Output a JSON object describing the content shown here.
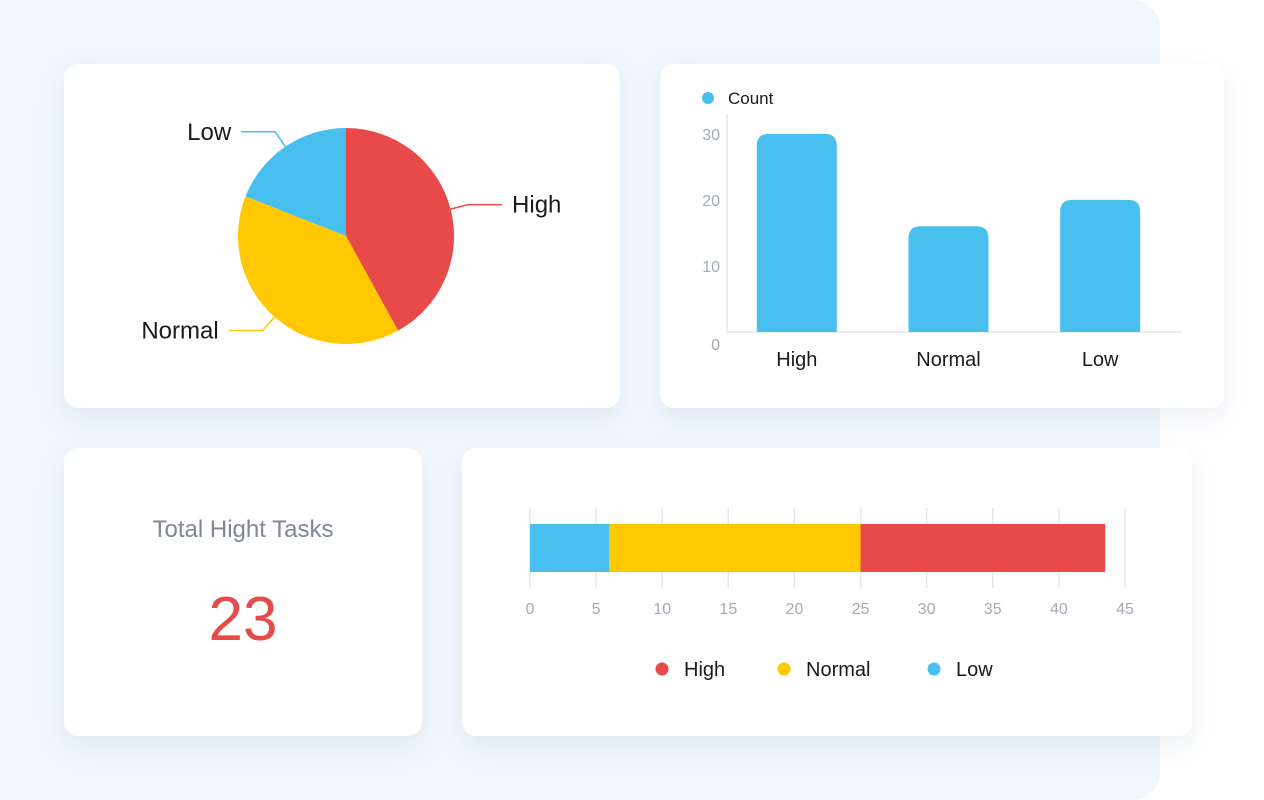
{
  "colors": {
    "high": "#e84a4a",
    "normal": "#ffc800",
    "low": "#49bfef",
    "axis_text": "#a3aab8",
    "axis_line": "#e3e6ec",
    "label_text": "#1a1a1a"
  },
  "chart_data": [
    {
      "type": "pie",
      "slices": [
        {
          "label": "High",
          "value": 42,
          "color": "#e84a4a"
        },
        {
          "label": "Normal",
          "value": 39,
          "color": "#ffc800"
        },
        {
          "label": "Low",
          "value": 19,
          "color": "#49bfef"
        }
      ]
    },
    {
      "type": "bar",
      "legend": {
        "label": "Count",
        "position": "top-left"
      },
      "categories": [
        "High",
        "Normal",
        "Low"
      ],
      "series": [
        {
          "name": "Count",
          "values": [
            30,
            16,
            20
          ]
        }
      ],
      "yticks": [
        "0",
        "10",
        "20",
        "30"
      ],
      "ylim": [
        0,
        33
      ]
    },
    {
      "type": "bar",
      "orientation": "horizontal",
      "stacked": true,
      "series": [
        {
          "name": "Low",
          "values": [
            6
          ]
        },
        {
          "name": "Normal",
          "values": [
            19
          ]
        },
        {
          "name": "High",
          "values": [
            18.5
          ]
        }
      ],
      "xticks": [
        "0",
        "5",
        "10",
        "15",
        "20",
        "25",
        "30",
        "35",
        "40",
        "45"
      ],
      "xlim": [
        0,
        45
      ],
      "legend": {
        "position": "bottom",
        "items": [
          "High",
          "Normal",
          "Low"
        ]
      }
    }
  ],
  "summary": {
    "label": "Total Hight Tasks",
    "value": "23"
  }
}
